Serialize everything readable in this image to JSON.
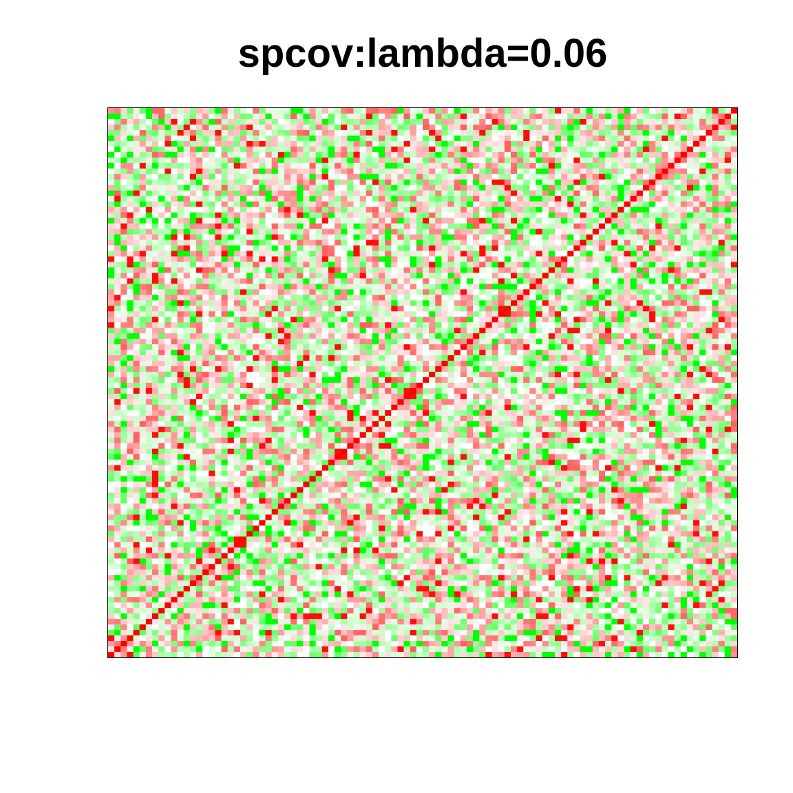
{
  "chart_data": {
    "type": "heatmap",
    "title": "spcov:lambda=0.06",
    "xlabel": "",
    "ylabel": "",
    "n": 100,
    "diagonal": "top-right to bottom-left",
    "diagonal_value": 1,
    "value_range": [
      -1,
      1
    ],
    "colors": {
      "negative": "#00ff00",
      "zero": "#ffffff",
      "positive": "#ff0000"
    },
    "axes_shown": false,
    "tick_labels": [],
    "legend": "none"
  }
}
